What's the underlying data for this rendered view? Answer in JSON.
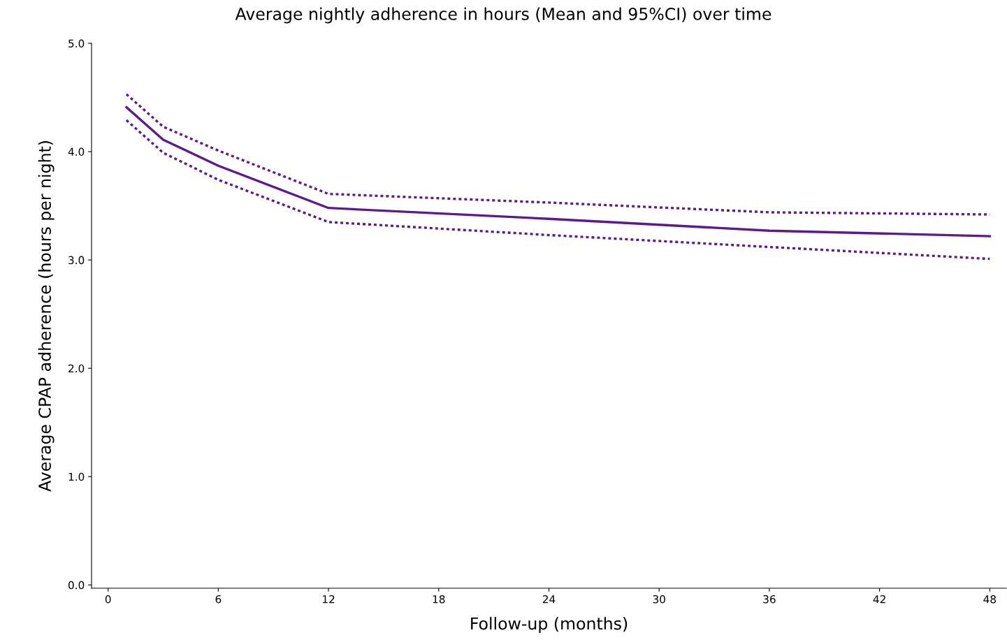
{
  "chart_data": {
    "type": "line",
    "title": "Average nightly adherence in hours (Mean and 95%CI) over time",
    "xlabel": "Follow-up (months)",
    "ylabel": "Average CPAP adherence (hours per night)",
    "x": [
      1,
      3,
      6,
      12,
      24,
      36,
      48
    ],
    "series": [
      {
        "color": "#5b1a8f",
        "line_style": "solid",
        "values": [
          4.41,
          4.11,
          3.87,
          3.48,
          3.38,
          3.27,
          3.22
        ]
      },
      {
        "color": "#5b1a8f",
        "line_style": "dotted",
        "values": [
          4.53,
          4.23,
          4.01,
          3.61,
          3.53,
          3.44,
          3.42
        ]
      },
      {
        "color": "#5b1a8f",
        "line_style": "dotted",
        "values": [
          4.29,
          3.99,
          3.74,
          3.35,
          3.23,
          3.12,
          3.01
        ]
      }
    ],
    "xlim": [
      -0.9,
      48.9
    ],
    "xticks": [
      0,
      6,
      12,
      18,
      24,
      30,
      36,
      42,
      48
    ],
    "ylim": [
      -0.03,
      5.0
    ],
    "yticks": [
      {
        "value": 0,
        "label": "0.0"
      },
      {
        "value": 1,
        "label": "1.0"
      },
      {
        "value": 2,
        "label": "2.0"
      },
      {
        "value": 3,
        "label": "3.0"
      },
      {
        "value": 4,
        "label": "4.0"
      },
      {
        "value": 5,
        "label": "5.0"
      }
    ],
    "grid": false,
    "marker": "none"
  }
}
